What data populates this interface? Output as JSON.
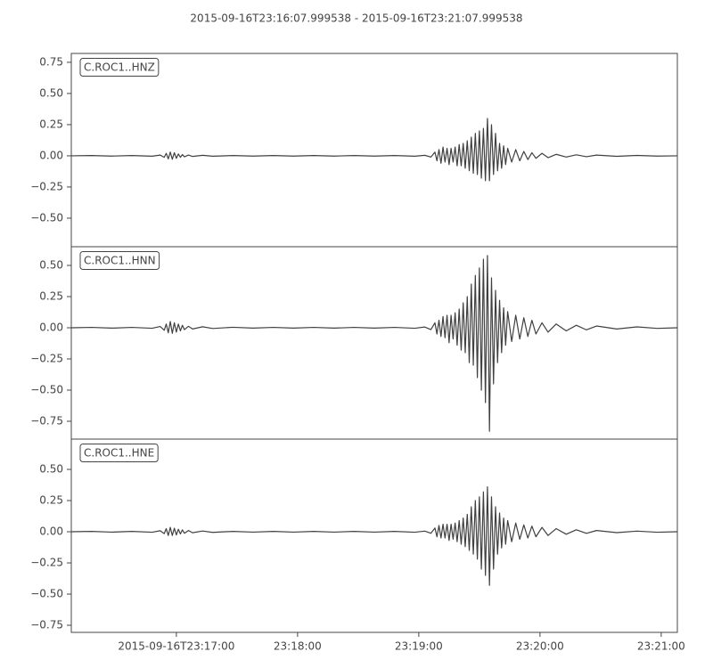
{
  "title": "2015-09-16T23:16:07.999538  -  2015-09-16T23:21:07.999538",
  "chart_data": [
    {
      "type": "line",
      "label": "C.ROC1..HNZ",
      "color": "#404040",
      "x": [
        0,
        10,
        20,
        30,
        40,
        44,
        46,
        47,
        48,
        49,
        50,
        51,
        52,
        53,
        54,
        55,
        56,
        58,
        60,
        65,
        70,
        80,
        90,
        100,
        110,
        120,
        130,
        140,
        150,
        160,
        170,
        175,
        178,
        180,
        181,
        182,
        183,
        184,
        185,
        186,
        187,
        188,
        189,
        190,
        191,
        192,
        193,
        194,
        195,
        196,
        197,
        198,
        199,
        200,
        201,
        202,
        203,
        204,
        205,
        206,
        207,
        208,
        209,
        210,
        211,
        212,
        213,
        214,
        215,
        216,
        218,
        220,
        222,
        224,
        226,
        228,
        230,
        233,
        236,
        240,
        245,
        250,
        255,
        260,
        270,
        280,
        290,
        300
      ],
      "values": [
        0,
        0.002,
        -0.002,
        0.002,
        -0.003,
        0.006,
        -0.012,
        0.02,
        -0.025,
        0.03,
        -0.028,
        0.025,
        -0.02,
        0.015,
        -0.012,
        0.01,
        -0.008,
        0.006,
        -0.005,
        0.004,
        -0.003,
        0.002,
        -0.002,
        0.002,
        -0.002,
        0.002,
        -0.002,
        0.002,
        -0.002,
        0.002,
        -0.003,
        0.004,
        -0.01,
        0.03,
        -0.04,
        0.05,
        -0.06,
        0.07,
        -0.05,
        0.06,
        -0.07,
        0.06,
        -0.05,
        0.07,
        -0.08,
        0.09,
        -0.08,
        0.1,
        -0.1,
        0.12,
        -0.12,
        0.15,
        -0.14,
        0.18,
        -0.15,
        0.2,
        -0.18,
        0.22,
        -0.2,
        0.3,
        -0.2,
        0.25,
        -0.15,
        0.18,
        -0.12,
        0.1,
        -0.1,
        0.08,
        -0.07,
        0.06,
        -0.05,
        0.05,
        -0.04,
        0.035,
        -0.03,
        0.025,
        -0.02,
        0.02,
        -0.015,
        0.012,
        -0.01,
        0.008,
        -0.007,
        0.006,
        -0.004,
        0.003,
        -0.002,
        0
      ],
      "xlim": [
        0,
        300
      ],
      "ylim": [
        -0.729,
        0.821
      ],
      "yticks": [
        0.75,
        {
          "value": 0.5,
          "label": "0.50"
        },
        0.25,
        {
          "value": 0,
          "label": "0.00"
        },
        {
          "value": -0.25,
          "label": "−0.25"
        },
        {
          "value": -0.5,
          "label": "−0.50"
        }
      ]
    },
    {
      "type": "line",
      "label": "C.ROC1..HNN",
      "color": "#404040",
      "x": [
        0,
        10,
        20,
        30,
        40,
        44,
        46,
        47,
        48,
        49,
        50,
        51,
        52,
        53,
        54,
        55,
        56,
        58,
        60,
        65,
        70,
        80,
        90,
        100,
        110,
        120,
        130,
        140,
        150,
        160,
        170,
        175,
        178,
        180,
        181,
        182,
        183,
        184,
        185,
        186,
        187,
        188,
        189,
        190,
        191,
        192,
        193,
        194,
        195,
        196,
        197,
        198,
        199,
        200,
        201,
        202,
        203,
        204,
        205,
        206,
        207,
        208,
        209,
        210,
        211,
        212,
        213,
        214,
        215,
        216,
        218,
        220,
        222,
        224,
        226,
        228,
        230,
        233,
        236,
        240,
        245,
        250,
        255,
        260,
        270,
        280,
        290,
        300
      ],
      "values": [
        0,
        0.003,
        -0.003,
        0.003,
        -0.004,
        0.01,
        -0.02,
        0.03,
        -0.04,
        0.05,
        -0.045,
        0.04,
        -0.035,
        0.03,
        -0.025,
        0.02,
        -0.015,
        0.012,
        -0.01,
        0.008,
        -0.006,
        0.004,
        -0.003,
        0.003,
        -0.003,
        0.003,
        -0.003,
        0.003,
        -0.003,
        0.003,
        -0.004,
        0.006,
        -0.015,
        0.04,
        -0.05,
        0.06,
        -0.07,
        0.09,
        -0.08,
        0.1,
        -0.12,
        0.1,
        -0.09,
        0.12,
        -0.14,
        0.15,
        -0.18,
        0.2,
        -0.2,
        0.25,
        -0.28,
        0.35,
        -0.3,
        0.42,
        -0.4,
        0.48,
        -0.5,
        0.55,
        -0.6,
        0.58,
        -0.83,
        0.4,
        -0.45,
        0.3,
        -0.28,
        0.22,
        -0.2,
        0.16,
        -0.14,
        0.13,
        -0.11,
        0.1,
        -0.09,
        0.08,
        -0.07,
        0.06,
        -0.05,
        0.04,
        -0.035,
        0.03,
        -0.025,
        0.02,
        -0.017,
        0.014,
        -0.01,
        0.007,
        -0.005,
        0
      ],
      "xlim": [
        0,
        300
      ],
      "ylim": [
        -0.893,
        0.65
      ],
      "yticks": [
        {
          "value": 0.5,
          "label": "0.50"
        },
        0.25,
        {
          "value": 0,
          "label": "0.00"
        },
        {
          "value": -0.25,
          "label": "−0.25"
        },
        {
          "value": -0.5,
          "label": "−0.50"
        },
        {
          "value": -0.75,
          "label": "−0.75"
        }
      ]
    },
    {
      "type": "line",
      "label": "C.ROC1..HNE",
      "color": "#404040",
      "x": [
        0,
        10,
        20,
        30,
        40,
        44,
        46,
        47,
        48,
        49,
        50,
        51,
        52,
        53,
        54,
        55,
        56,
        58,
        60,
        65,
        70,
        80,
        90,
        100,
        110,
        120,
        130,
        140,
        150,
        160,
        170,
        175,
        178,
        180,
        181,
        182,
        183,
        184,
        185,
        186,
        187,
        188,
        189,
        190,
        191,
        192,
        193,
        194,
        195,
        196,
        197,
        198,
        199,
        200,
        201,
        202,
        203,
        204,
        205,
        206,
        207,
        208,
        209,
        210,
        211,
        212,
        213,
        214,
        215,
        216,
        218,
        220,
        222,
        224,
        226,
        228,
        230,
        233,
        236,
        240,
        245,
        250,
        255,
        260,
        270,
        280,
        290,
        300
      ],
      "values": [
        0,
        0.003,
        -0.003,
        0.003,
        -0.004,
        0.008,
        -0.015,
        0.025,
        -0.03,
        0.035,
        -0.03,
        0.028,
        -0.025,
        0.02,
        -0.018,
        0.015,
        -0.012,
        0.01,
        -0.008,
        0.006,
        -0.005,
        0.003,
        -0.003,
        0.003,
        -0.003,
        0.003,
        -0.003,
        0.003,
        -0.003,
        0.003,
        -0.004,
        0.005,
        -0.012,
        0.03,
        -0.04,
        0.05,
        -0.05,
        0.06,
        -0.05,
        0.06,
        -0.07,
        0.06,
        -0.06,
        0.07,
        -0.08,
        0.09,
        -0.1,
        0.11,
        -0.12,
        0.14,
        -0.15,
        0.2,
        -0.18,
        0.25,
        -0.22,
        0.28,
        -0.3,
        0.32,
        -0.35,
        0.36,
        -0.43,
        0.28,
        -0.3,
        0.2,
        -0.18,
        0.15,
        -0.13,
        0.11,
        -0.1,
        0.09,
        -0.08,
        0.07,
        -0.06,
        0.055,
        -0.05,
        0.045,
        -0.04,
        0.035,
        -0.03,
        0.025,
        -0.02,
        0.016,
        -0.013,
        0.01,
        -0.007,
        0.005,
        -0.004,
        0
      ],
      "xlim": [
        0,
        300
      ],
      "ylim": [
        -0.807,
        0.743
      ],
      "yticks": [
        {
          "value": 0.5,
          "label": "0.50"
        },
        0.25,
        {
          "value": 0,
          "label": "0.00"
        },
        {
          "value": -0.25,
          "label": "−0.25"
        },
        {
          "value": -0.5,
          "label": "−0.50"
        },
        {
          "value": -0.75,
          "label": "−0.75"
        }
      ],
      "xticks": [
        {
          "value": 52.000462,
          "label": "2015-09-16T23:17:00"
        },
        {
          "value": 112.000462,
          "label": "23:18:00"
        },
        {
          "value": 172.000462,
          "label": "23:19:00"
        },
        {
          "value": 232.000462,
          "label": "23:20:00"
        },
        {
          "value": 292.000462,
          "label": "23:21:00"
        }
      ]
    }
  ]
}
